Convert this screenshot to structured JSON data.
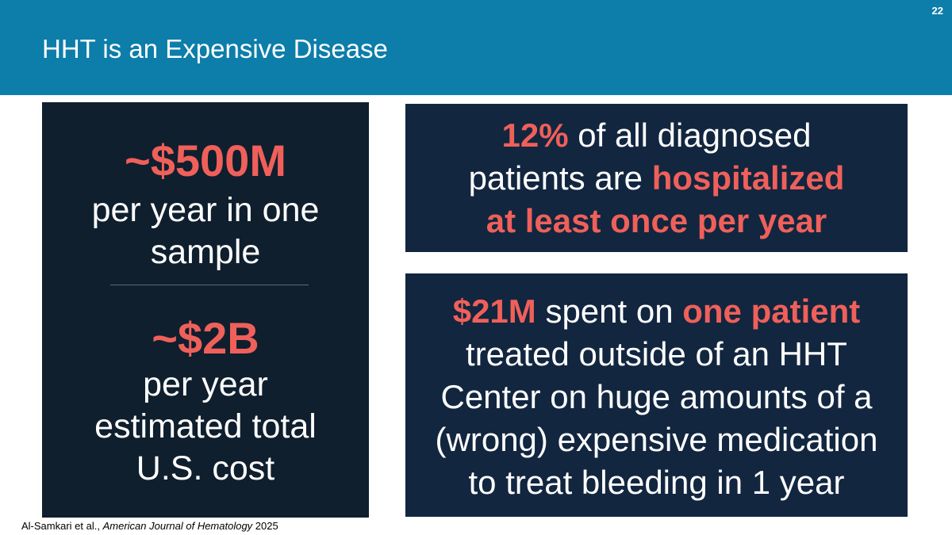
{
  "header": {
    "title": "HHT is an Expensive Disease",
    "page_number": "22"
  },
  "left_panel": {
    "stat1_value": "~$500M",
    "stat1_desc_line1": "per year in one",
    "stat1_desc_line2": "sample",
    "stat2_value": "~$2B",
    "stat2_desc_line1": "per year",
    "stat2_desc_line2": "estimated total",
    "stat2_desc_line3": "U.S. cost"
  },
  "top_box": {
    "highlight_percent": "12%",
    "line1_rest": " of all diagnosed",
    "line2_start": "patients are ",
    "line2_highlight": "hospitalized",
    "line3_highlight": "at least once per year"
  },
  "bottom_box": {
    "highlight_amount": "$21M",
    "line1_mid": " spent on ",
    "line1_highlight": "one patient",
    "line2": "treated outside of an HHT",
    "line3": "Center on huge amounts of a",
    "line4": "(wrong) expensive medication",
    "line5": "to treat bleeding in 1 year"
  },
  "citation": {
    "authors": "Al-Samkari et al., ",
    "journal": "American Journal of Hematology",
    "year": " 2025"
  },
  "colors": {
    "header_bg": "#0c7ea9",
    "accent": "#f0605a",
    "panel_dark": "#0f1f2e",
    "box_navy": "#12263f"
  }
}
